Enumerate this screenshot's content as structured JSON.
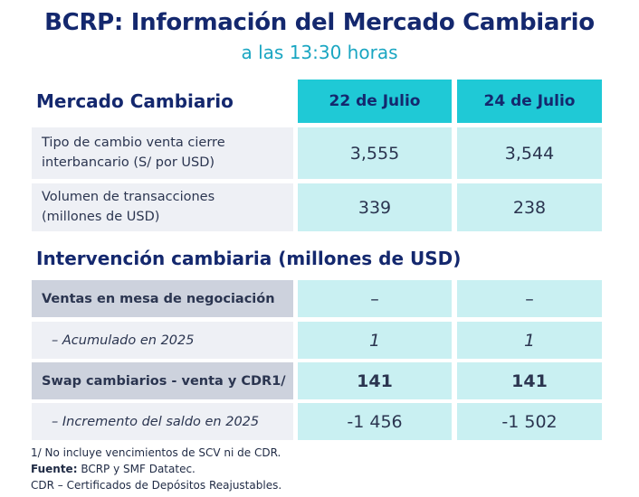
{
  "title": "BCRP: Información del Mercado Cambiario",
  "subtitle": "a las 13:30 horas",
  "market": {
    "heading": "Mercado Cambiario",
    "dates": [
      "22 de Julio",
      "24 de Julio"
    ],
    "rows": [
      {
        "label_line1": "Tipo de cambio venta cierre",
        "label_line2": "interbancario (S/ por USD)",
        "values": [
          "3,555",
          "3,544"
        ]
      },
      {
        "label_line1": "Volumen de transacciones",
        "label_line2": "(millones de USD)",
        "values": [
          "339",
          "238"
        ]
      }
    ]
  },
  "intervention": {
    "heading": "Intervención cambiaria (millones de USD)",
    "rows": [
      {
        "label": "Ventas en mesa de negociación",
        "values": [
          "–",
          "–"
        ]
      },
      {
        "label": "–  Acumulado en 2025",
        "values": [
          "1",
          "1"
        ]
      },
      {
        "label": "Swap cambiarios - venta y CDR1/",
        "values": [
          "141",
          "141"
        ]
      },
      {
        "label": "–  Incremento del saldo en 2025",
        "values": [
          "-1 456",
          "-1 502"
        ]
      }
    ]
  },
  "footnotes": {
    "note1": "1/ No incluye vencimientos de SCV ni de CDR.",
    "source_label": "Fuente:",
    "source_text": " BCRP y SMF Datatec.",
    "note3": "CDR – Certificados de Depósitos Reajustables."
  },
  "colors": {
    "title": "#14286e",
    "subtitle": "#1aa6c2",
    "header_fill": "#1fc9d6",
    "value_fill": "#c9f0f2",
    "label_fill_light": "#eef0f5",
    "label_fill_dark": "#cdd2dd"
  }
}
